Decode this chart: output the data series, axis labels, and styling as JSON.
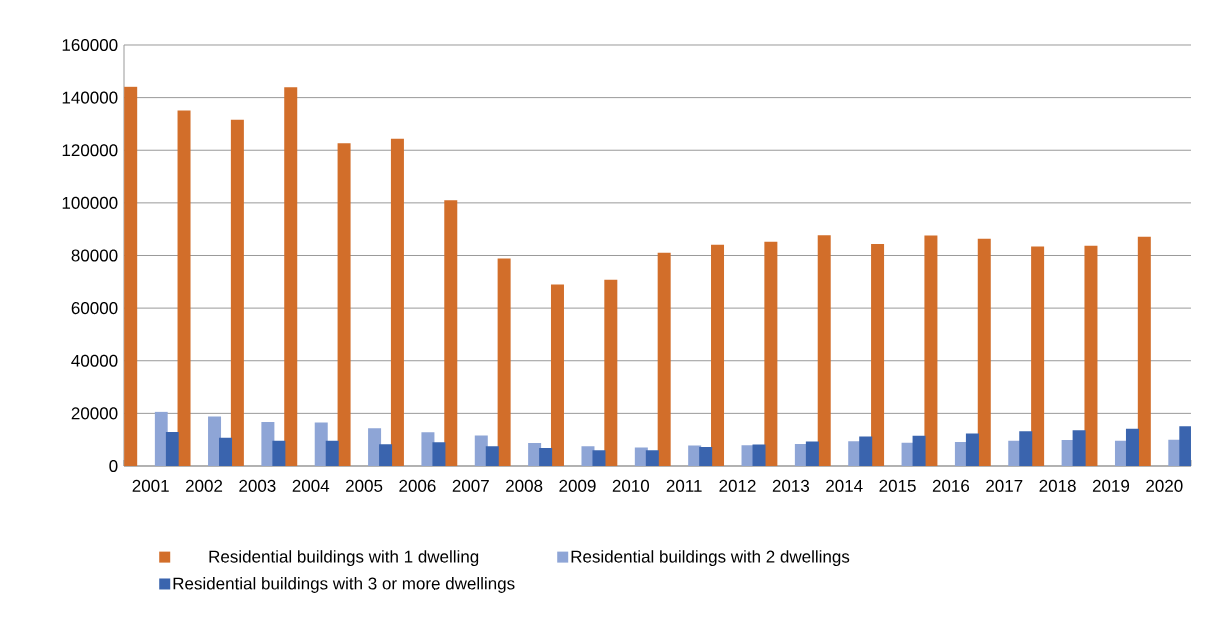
{
  "chart_data": {
    "type": "bar",
    "categories": [
      "2001",
      "2002",
      "2003",
      "2004",
      "2005",
      "2006",
      "2007",
      "2008",
      "2009",
      "2010",
      "2011",
      "2012",
      "2013",
      "2014",
      "2015",
      "2016",
      "2017",
      "2018",
      "2019",
      "2020"
    ],
    "series": [
      {
        "name": "Residential buildings with 1 dwelling",
        "color": "#d26e2a",
        "values": [
          144100,
          135100,
          131600,
          143900,
          122700,
          124400,
          101000,
          78900,
          69000,
          70800,
          81000,
          84100,
          85200,
          87700,
          84400,
          87600,
          86400,
          83400,
          83700,
          87100
        ]
      },
      {
        "name": "Residential buildings with 2 dwellings",
        "color": "#8ea5d6",
        "values": [
          20600,
          18800,
          16700,
          16500,
          14300,
          12800,
          11600,
          8700,
          7500,
          7000,
          7800,
          7900,
          8400,
          9400,
          8800,
          9100,
          9600,
          9900,
          9600,
          10000
        ]
      },
      {
        "name": "Residential buildings with 3 or more dwellings",
        "color": "#3a64ae",
        "values": [
          12900,
          10700,
          9600,
          9600,
          8300,
          9000,
          7500,
          6800,
          6000,
          6000,
          7200,
          8200,
          9300,
          11200,
          11500,
          12300,
          13200,
          13600,
          14200,
          15100
        ]
      }
    ],
    "ylim": [
      0,
      160000
    ],
    "yticks": [
      0,
      20000,
      40000,
      60000,
      80000,
      100000,
      120000,
      140000,
      160000
    ],
    "grid": "y",
    "legend": "bottom"
  }
}
